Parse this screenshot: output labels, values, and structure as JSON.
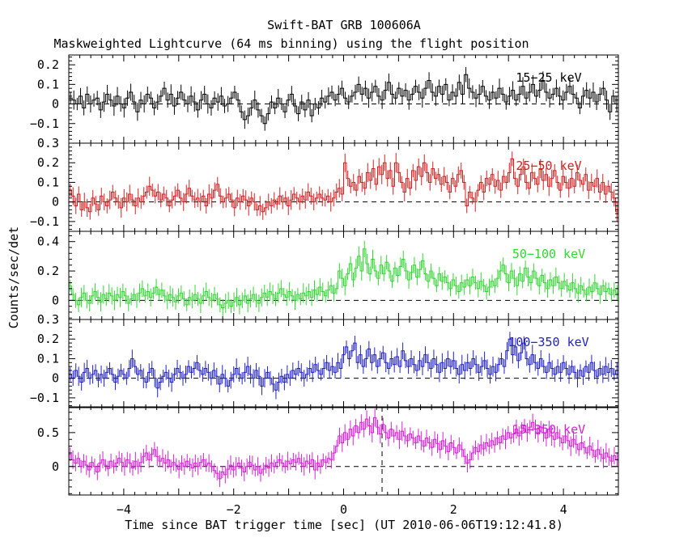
{
  "chart_data": {
    "type": "line",
    "title": "Swift-BAT GRB 100606A",
    "subtitle": "Maskweighted Lightcurve (64 ms binning) using the flight position",
    "xlabel": "Time since BAT trigger time [sec] (UT 2010-06-06T19:12:41.8)",
    "ylabel": "Counts/sec/det",
    "xlim": [
      -5,
      5
    ],
    "xticks": [
      -4,
      -2,
      0,
      2,
      4
    ],
    "xtick_labels": [
      "−4",
      "−2",
      "0",
      "2",
      "4"
    ],
    "bin_width": 0.064,
    "marker_time": 0.7,
    "grid": false,
    "panels": [
      {
        "name": "15−25 keV",
        "color": "#000000",
        "ylim": [
          -0.2,
          0.25
        ],
        "yticks": [
          -0.1,
          0,
          0.1,
          0.2
        ],
        "ytick_labels": [
          "−0.1",
          "0",
          "0.1",
          "0.2"
        ],
        "values": [
          0.03,
          0.02,
          0.0,
          0.04,
          -0.02,
          0.05,
          0.0,
          0.02,
          0.03,
          -0.03,
          0.01,
          0.05,
          0.02,
          -0.01,
          0.04,
          0.0,
          -0.02,
          0.03,
          0.06,
          0.01,
          -0.04,
          0.02,
          0.0,
          0.05,
          0.03,
          -0.02,
          0.01,
          0.04,
          0.08,
          0.02,
          0.05,
          -0.01,
          0.03,
          0.06,
          0.02,
          0.0,
          0.04,
          0.01,
          -0.03,
          0.02,
          0.05,
          0.0,
          -0.02,
          0.03,
          0.01,
          0.04,
          -0.01,
          0.0,
          0.03,
          0.06,
          0.02,
          -0.04,
          -0.08,
          -0.06,
          -0.02,
          0.02,
          -0.03,
          -0.06,
          -0.1,
          -0.05,
          0.01,
          -0.02,
          0.03,
          0.0,
          -0.04,
          0.02,
          0.05,
          -0.01,
          -0.05,
          0.01,
          -0.03,
          0.02,
          -0.06,
          0.0,
          -0.02,
          0.03,
          0.01,
          0.04,
          0.06,
          0.02,
          0.05,
          0.08,
          0.03,
          0.01,
          0.04,
          0.06,
          0.1,
          0.05,
          0.08,
          0.03,
          0.06,
          0.09,
          0.04,
          0.02,
          0.07,
          0.11,
          0.05,
          0.03,
          0.08,
          0.04,
          0.07,
          0.02,
          0.05,
          0.09,
          0.06,
          0.03,
          0.08,
          0.12,
          0.06,
          0.04,
          0.09,
          0.05,
          0.1,
          0.02,
          0.06,
          0.04,
          0.11,
          0.05,
          0.15,
          0.08,
          0.06,
          0.03,
          0.05,
          0.09,
          0.04,
          0.02,
          0.06,
          0.03,
          0.08,
          0.05,
          0.01,
          0.04,
          0.07,
          0.02,
          0.05,
          0.09,
          0.03,
          0.06,
          0.1,
          0.04,
          0.07,
          0.12,
          0.06,
          0.03,
          0.05,
          0.08,
          0.04,
          0.02,
          0.06,
          0.09,
          0.05,
          0.03,
          -0.02,
          0.04,
          0.07,
          0.03,
          0.06,
          0.01,
          0.05,
          0.08,
          0.02,
          -0.04,
          0.04,
          0.0
        ]
      },
      {
        "name": "25−50 keV",
        "color": "#d42121",
        "ylim": [
          -0.15,
          0.3
        ],
        "yticks": [
          -0.1,
          0,
          0.1,
          0.2,
          0.3
        ],
        "ytick_labels": [
          "−0.1",
          "0",
          "0.1",
          "0.2",
          "0.3"
        ],
        "values": [
          0.06,
          0.03,
          -0.02,
          0.04,
          -0.04,
          0.0,
          -0.03,
          -0.05,
          0.02,
          -0.01,
          -0.04,
          0.03,
          0.0,
          -0.02,
          0.01,
          0.05,
          0.02,
          0.0,
          -0.03,
          0.02,
          0.0,
          0.04,
          0.01,
          -0.02,
          0.02,
          0.0,
          0.03,
          0.05,
          0.08,
          0.06,
          0.03,
          0.05,
          0.01,
          0.04,
          0.02,
          -0.02,
          0.01,
          0.03,
          0.06,
          0.02,
          0.0,
          0.04,
          0.07,
          0.03,
          0.01,
          0.02,
          0.0,
          0.03,
          -0.02,
          0.04,
          0.02,
          0.06,
          0.09,
          0.03,
          0.0,
          0.02,
          0.04,
          0.01,
          -0.03,
          0.02,
          0.0,
          0.03,
          0.01,
          -0.02,
          0.02,
          0.0,
          -0.04,
          -0.02,
          -0.05,
          -0.03,
          0.0,
          -0.02,
          0.01,
          -0.01,
          0.03,
          0.0,
          0.02,
          -0.02,
          0.01,
          0.04,
          0.02,
          0.0,
          0.03,
          0.01,
          0.05,
          0.03,
          0.0,
          0.02,
          0.04,
          0.02,
          0.01,
          0.03,
          0.0,
          0.02,
          0.05,
          0.07,
          0.04,
          0.2,
          0.12,
          0.08,
          0.1,
          0.06,
          0.13,
          0.1,
          0.07,
          0.15,
          0.11,
          0.17,
          0.09,
          0.18,
          0.14,
          0.2,
          0.12,
          0.16,
          0.08,
          0.2,
          0.15,
          0.1,
          0.05,
          0.12,
          0.07,
          0.16,
          0.11,
          0.18,
          0.13,
          0.2,
          0.15,
          0.1,
          0.17,
          0.12,
          0.14,
          0.09,
          0.13,
          0.1,
          0.05,
          0.12,
          0.08,
          0.14,
          0.16,
          0.1,
          -0.02,
          0.05,
          0.02,
          0.0,
          0.06,
          0.1,
          0.05,
          0.12,
          0.09,
          0.14,
          0.08,
          0.11,
          0.06,
          0.13,
          0.1,
          0.15,
          0.22,
          0.12,
          0.08,
          0.14,
          0.18,
          0.1,
          0.07,
          0.15,
          0.12,
          0.09,
          0.17,
          0.11,
          0.14,
          0.08,
          0.12,
          0.16,
          0.1,
          0.06,
          0.13,
          0.1,
          0.07,
          0.12,
          0.08,
          0.15,
          0.11,
          0.09,
          0.14,
          0.06,
          0.1,
          0.08,
          0.12,
          0.05,
          0.1,
          0.04,
          0.08,
          0.05,
          0.02,
          -0.05
        ]
      },
      {
        "name": "50−100 keV",
        "color": "#33d633",
        "ylim": [
          -0.13,
          0.47
        ],
        "yticks": [
          0,
          0.2,
          0.4
        ],
        "ytick_labels": [
          "0",
          "0.2",
          "0.4"
        ],
        "values": [
          0.1,
          0.04,
          0.0,
          -0.03,
          0.02,
          0.05,
          0.0,
          -0.02,
          0.03,
          0.06,
          0.02,
          -0.01,
          0.04,
          0.01,
          0.05,
          0.03,
          0.0,
          0.04,
          0.02,
          0.06,
          0.03,
          -0.02,
          0.01,
          0.04,
          0.0,
          0.05,
          0.08,
          0.03,
          0.06,
          0.02,
          0.05,
          0.09,
          0.04,
          0.07,
          0.03,
          0.0,
          0.04,
          0.02,
          -0.01,
          0.03,
          0.05,
          0.01,
          -0.03,
          0.02,
          0.0,
          0.04,
          0.01,
          -0.02,
          0.03,
          0.06,
          0.02,
          0.0,
          0.04,
          0.01,
          -0.03,
          -0.05,
          -0.02,
          0.0,
          -0.04,
          -0.01,
          0.02,
          -0.03,
          0.0,
          0.03,
          -0.02,
          0.01,
          0.04,
          0.0,
          -0.02,
          0.02,
          0.05,
          0.02,
          0.06,
          0.04,
          0.01,
          0.05,
          0.08,
          0.04,
          0.02,
          0.06,
          0.03,
          0.0,
          0.04,
          0.01,
          0.05,
          0.03,
          0.06,
          0.02,
          0.07,
          0.04,
          0.09,
          0.06,
          0.03,
          0.07,
          0.1,
          0.05,
          0.08,
          0.2,
          0.15,
          0.1,
          0.18,
          0.25,
          0.14,
          0.22,
          0.3,
          0.2,
          0.35,
          0.25,
          0.18,
          0.28,
          0.2,
          0.15,
          0.24,
          0.18,
          0.26,
          0.2,
          0.13,
          0.22,
          0.17,
          0.23,
          0.28,
          0.2,
          0.14,
          0.19,
          0.24,
          0.16,
          0.21,
          0.27,
          0.18,
          0.13,
          0.2,
          0.15,
          0.1,
          0.18,
          0.13,
          0.16,
          0.12,
          0.08,
          0.14,
          0.1,
          0.06,
          0.12,
          0.09,
          0.14,
          0.1,
          0.16,
          0.12,
          0.08,
          0.13,
          0.1,
          0.06,
          0.09,
          0.13,
          0.1,
          0.15,
          0.2,
          0.24,
          0.18,
          0.12,
          0.2,
          0.15,
          0.1,
          0.18,
          0.13,
          0.22,
          0.16,
          0.12,
          0.2,
          0.15,
          0.1,
          0.17,
          0.12,
          0.08,
          0.14,
          0.1,
          0.16,
          0.12,
          0.08,
          0.13,
          0.1,
          0.07,
          0.12,
          0.08,
          0.05,
          0.1,
          0.07,
          0.04,
          0.09,
          0.06,
          0.12,
          0.08,
          0.04,
          0.1,
          0.06,
          0.08,
          0.04,
          0.07,
          0.05
        ]
      },
      {
        "name": "100−350 keV",
        "color": "#2121c8",
        "ylim": [
          -0.15,
          0.3
        ],
        "yticks": [
          -0.1,
          0,
          0.1,
          0.2,
          0.3
        ],
        "ytick_labels": [
          "−0.1",
          "0",
          "0.1",
          "0.2",
          "0.3"
        ],
        "values": [
          0.02,
          0.0,
          0.04,
          0.01,
          -0.02,
          0.03,
          0.05,
          0.0,
          0.02,
          0.04,
          -0.01,
          0.02,
          0.0,
          0.03,
          0.05,
          0.02,
          -0.02,
          0.01,
          0.04,
          0.02,
          0.0,
          0.05,
          0.1,
          0.06,
          0.02,
          0.04,
          0.0,
          -0.02,
          0.03,
          0.05,
          0.0,
          -0.05,
          -0.02,
          0.01,
          0.03,
          0.0,
          -0.02,
          0.02,
          0.05,
          0.03,
          0.0,
          0.02,
          0.06,
          0.03,
          0.05,
          0.08,
          0.04,
          0.02,
          0.05,
          0.03,
          0.0,
          0.04,
          0.01,
          -0.03,
          0.02,
          0.0,
          -0.04,
          -0.01,
          0.02,
          0.05,
          0.02,
          0.0,
          0.03,
          0.06,
          0.02,
          0.0,
          0.04,
          0.01,
          -0.04,
          0.0,
          0.03,
          0.0,
          -0.03,
          -0.06,
          -0.02,
          0.01,
          -0.02,
          0.02,
          0.0,
          0.04,
          0.02,
          0.05,
          0.03,
          0.0,
          0.02,
          0.05,
          0.03,
          0.07,
          0.04,
          0.02,
          0.05,
          0.08,
          0.04,
          0.06,
          0.03,
          0.08,
          0.05,
          0.12,
          0.16,
          0.1,
          0.14,
          0.18,
          0.08,
          0.12,
          0.06,
          0.1,
          0.15,
          0.08,
          0.12,
          0.06,
          0.1,
          0.13,
          0.08,
          0.05,
          0.1,
          0.07,
          0.11,
          0.06,
          0.14,
          0.09,
          0.06,
          0.1,
          0.07,
          0.04,
          0.09,
          0.06,
          0.12,
          0.08,
          0.05,
          0.1,
          0.07,
          0.03,
          0.08,
          0.05,
          0.1,
          0.06,
          0.09,
          0.05,
          0.02,
          0.07,
          0.04,
          0.08,
          0.05,
          0.1,
          0.07,
          0.03,
          0.06,
          0.09,
          0.05,
          0.02,
          0.06,
          0.03,
          0.07,
          0.1,
          0.06,
          0.14,
          0.2,
          0.12,
          0.16,
          0.09,
          0.13,
          0.18,
          0.1,
          0.07,
          0.12,
          0.08,
          0.05,
          0.1,
          0.06,
          0.03,
          0.08,
          0.05,
          0.02,
          0.06,
          0.03,
          0.08,
          0.05,
          0.02,
          0.06,
          0.03,
          0.0,
          0.04,
          0.01,
          0.06,
          0.03,
          0.08,
          0.04,
          0.01,
          0.05,
          0.02,
          0.06,
          0.03,
          0.05,
          0.02,
          0.04
        ]
      },
      {
        "name": "15−350 keV",
        "color": "#d421d4",
        "ylim": [
          -0.42,
          0.88
        ],
        "yticks": [
          0,
          0.5
        ],
        "ytick_labels": [
          "0",
          "0.5"
        ],
        "values": [
          0.18,
          0.1,
          0.05,
          0.12,
          0.0,
          0.08,
          0.02,
          -0.05,
          0.06,
          0.0,
          -0.08,
          0.05,
          0.1,
          0.02,
          -0.03,
          0.08,
          0.0,
          0.05,
          0.12,
          0.06,
          0.0,
          0.1,
          0.05,
          -0.02,
          0.08,
          0.0,
          0.06,
          0.15,
          0.2,
          0.1,
          0.18,
          0.25,
          0.15,
          0.08,
          0.12,
          0.05,
          0.1,
          0.0,
          0.06,
          0.02,
          -0.04,
          0.05,
          0.0,
          0.08,
          0.03,
          -0.02,
          0.05,
          0.0,
          0.06,
          0.1,
          0.02,
          0.05,
          0.0,
          -0.06,
          -0.1,
          -0.18,
          -0.08,
          -0.12,
          -0.04,
          0.02,
          -0.05,
          0.0,
          0.05,
          -0.02,
          -0.08,
          0.0,
          0.06,
          0.02,
          -0.05,
          0.0,
          -0.1,
          -0.04,
          0.02,
          -0.02,
          0.05,
          0.0,
          0.06,
          0.1,
          0.05,
          0.0,
          0.08,
          0.04,
          0.1,
          0.06,
          0.12,
          0.05,
          0.0,
          0.08,
          0.04,
          0.1,
          -0.05,
          0.05,
          0.0,
          0.1,
          0.06,
          0.12,
          0.1,
          0.2,
          0.3,
          0.45,
          0.35,
          0.5,
          0.4,
          0.55,
          0.45,
          0.6,
          0.5,
          0.65,
          0.55,
          0.7,
          0.6,
          0.5,
          0.72,
          0.58,
          0.48,
          0.62,
          0.5,
          0.42,
          0.55,
          0.45,
          0.5,
          0.4,
          0.52,
          0.45,
          0.38,
          0.48,
          0.42,
          0.35,
          0.45,
          0.38,
          0.3,
          0.42,
          0.35,
          0.28,
          0.4,
          0.34,
          0.25,
          0.38,
          0.3,
          0.22,
          0.35,
          0.28,
          0.2,
          0.32,
          0.25,
          0.15,
          0.05,
          0.1,
          0.2,
          0.28,
          0.22,
          0.32,
          0.26,
          0.35,
          0.3,
          0.38,
          0.32,
          0.42,
          0.35,
          0.45,
          0.4,
          0.5,
          0.42,
          0.48,
          0.55,
          0.45,
          0.52,
          0.6,
          0.5,
          0.58,
          0.65,
          0.55,
          0.48,
          0.58,
          0.5,
          0.42,
          0.55,
          0.45,
          0.4,
          0.5,
          0.42,
          0.35,
          0.45,
          0.38,
          0.3,
          0.4,
          0.33,
          0.25,
          0.35,
          0.28,
          0.2,
          0.3,
          0.24,
          0.15,
          0.25,
          0.18,
          0.12,
          0.2,
          0.14,
          0.08,
          0.16,
          0.1
        ]
      }
    ]
  }
}
